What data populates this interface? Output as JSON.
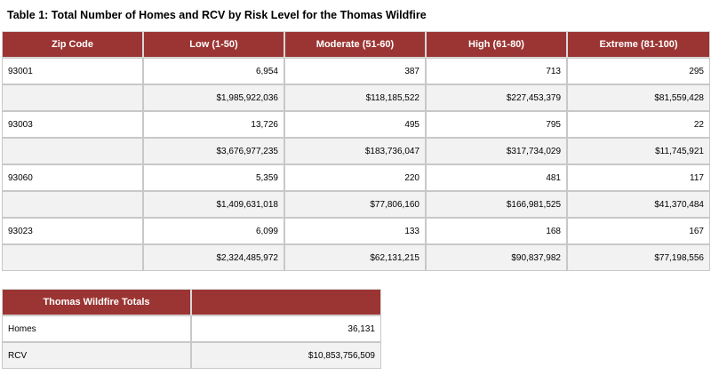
{
  "title": "Table 1: Total Number of Homes and RCV by Risk Level for the Thomas Wildfire",
  "main_table": {
    "headers": [
      "Zip Code",
      "Low (1-50)",
      "Moderate (51-60)",
      "High (61-80)",
      "Extreme (81-100)"
    ],
    "rows": [
      [
        "93001",
        "6,954",
        "387",
        "713",
        "295"
      ],
      [
        "",
        "$1,985,922,036",
        "$118,185,522",
        "$227,453,379",
        "$81,559,428"
      ],
      [
        "93003",
        "13,726",
        "495",
        "795",
        "22"
      ],
      [
        "",
        "$3,676,977,235",
        "$183,736,047",
        "$317,734,029",
        "$11,745,921"
      ],
      [
        "93060",
        "5,359",
        "220",
        "481",
        "117"
      ],
      [
        "",
        "$1,409,631,018",
        "$77,806,160",
        "$166,981,525",
        "$41,370,484"
      ],
      [
        "93023",
        "6,099",
        "133",
        "168",
        "167"
      ],
      [
        "",
        "$2,324,485,972",
        "$62,131,215",
        "$90,837,982",
        "$77,198,556"
      ]
    ]
  },
  "totals_table": {
    "headers": [
      "Thomas Wildfire Totals",
      ""
    ],
    "rows": [
      [
        "Homes",
        "36,131"
      ],
      [
        "RCV",
        "$10,853,756,509"
      ]
    ]
  },
  "colors": {
    "header_bg": "#9b3533",
    "header_text": "#ffffff",
    "alt_row_bg": "#f2f2f2"
  }
}
